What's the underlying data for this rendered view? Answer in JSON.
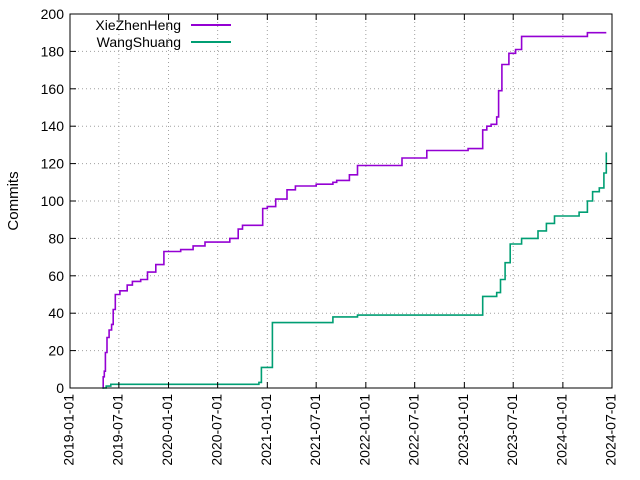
{
  "chart_data": {
    "type": "line",
    "ylabel": "Commits",
    "ylim": [
      0,
      200
    ],
    "yticks": [
      0,
      20,
      40,
      60,
      80,
      100,
      120,
      140,
      160,
      180,
      200
    ],
    "xlim": [
      "2019-01-01",
      "2024-07-01"
    ],
    "xticks": [
      "2019-01-01",
      "2019-07-01",
      "2020-01-01",
      "2020-07-01",
      "2021-01-01",
      "2021-07-01",
      "2022-01-01",
      "2022-07-01",
      "2023-01-01",
      "2023-07-01",
      "2024-01-01",
      "2024-07-01"
    ],
    "grid": true,
    "legend_position": "top-left",
    "series": [
      {
        "name": "XieZhenHeng",
        "color": "#9400d3",
        "step": true,
        "points": [
          [
            "2019-05-01",
            0
          ],
          [
            "2019-05-04",
            6
          ],
          [
            "2019-05-08",
            9
          ],
          [
            "2019-05-12",
            19
          ],
          [
            "2019-05-18",
            27
          ],
          [
            "2019-05-26",
            31
          ],
          [
            "2019-06-04",
            34
          ],
          [
            "2019-06-10",
            42
          ],
          [
            "2019-06-18",
            50
          ],
          [
            "2019-07-05",
            52
          ],
          [
            "2019-08-01",
            55
          ],
          [
            "2019-08-20",
            57
          ],
          [
            "2019-09-20",
            58
          ],
          [
            "2019-10-15",
            62
          ],
          [
            "2019-11-15",
            66
          ],
          [
            "2019-12-15",
            73
          ],
          [
            "2020-02-15",
            74
          ],
          [
            "2020-04-01",
            76
          ],
          [
            "2020-05-15",
            78
          ],
          [
            "2020-08-15",
            80
          ],
          [
            "2020-09-15",
            85
          ],
          [
            "2020-10-01",
            87
          ],
          [
            "2020-12-15",
            96
          ],
          [
            "2021-01-01",
            97
          ],
          [
            "2021-02-01",
            101
          ],
          [
            "2021-03-15",
            106
          ],
          [
            "2021-04-15",
            108
          ],
          [
            "2021-07-01",
            109
          ],
          [
            "2021-09-01",
            110
          ],
          [
            "2021-09-15",
            111
          ],
          [
            "2021-11-01",
            114
          ],
          [
            "2021-12-01",
            119
          ],
          [
            "2022-05-15",
            123
          ],
          [
            "2022-08-15",
            127
          ],
          [
            "2023-01-15",
            128
          ],
          [
            "2023-03-10",
            138
          ],
          [
            "2023-03-25",
            140
          ],
          [
            "2023-04-10",
            141
          ],
          [
            "2023-05-01",
            145
          ],
          [
            "2023-05-08",
            159
          ],
          [
            "2023-05-20",
            173
          ],
          [
            "2023-06-15",
            179
          ],
          [
            "2023-07-10",
            181
          ],
          [
            "2023-08-01",
            188
          ],
          [
            "2024-04-01",
            190
          ],
          [
            "2024-06-10",
            190
          ]
        ]
      },
      {
        "name": "WangShuang",
        "color": "#009e73",
        "step": true,
        "points": [
          [
            "2019-05-01",
            0
          ],
          [
            "2019-05-15",
            1
          ],
          [
            "2019-06-01",
            2
          ],
          [
            "2020-12-01",
            3
          ],
          [
            "2020-12-10",
            11
          ],
          [
            "2021-01-20",
            35
          ],
          [
            "2021-09-01",
            38
          ],
          [
            "2021-12-01",
            39
          ],
          [
            "2023-03-10",
            49
          ],
          [
            "2023-05-01",
            51
          ],
          [
            "2023-05-15",
            58
          ],
          [
            "2023-06-01",
            67
          ],
          [
            "2023-06-20",
            77
          ],
          [
            "2023-08-01",
            80
          ],
          [
            "2023-10-01",
            84
          ],
          [
            "2023-11-01",
            88
          ],
          [
            "2023-12-01",
            92
          ],
          [
            "2024-03-01",
            94
          ],
          [
            "2024-04-01",
            100
          ],
          [
            "2024-04-20",
            105
          ],
          [
            "2024-05-15",
            107
          ],
          [
            "2024-06-01",
            115
          ],
          [
            "2024-06-10",
            126
          ]
        ]
      }
    ]
  }
}
